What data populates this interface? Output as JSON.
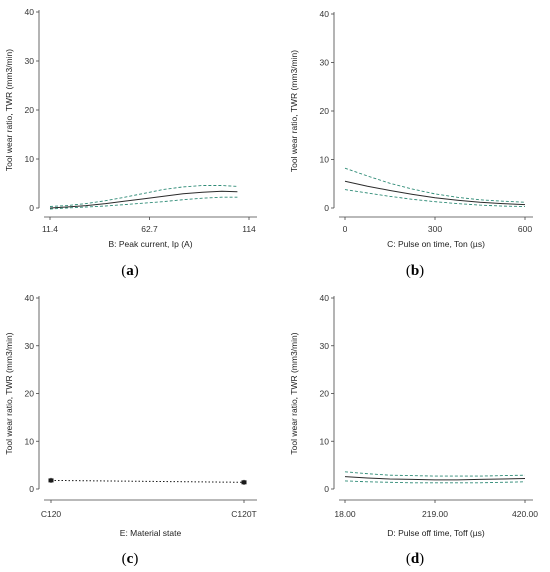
{
  "colors": {
    "mean_line": "#2b2b2b",
    "ci_line": "#2e8b76",
    "axis": "#444444",
    "point": "#1a1a1a"
  },
  "chart_data": [
    {
      "type": "line",
      "panel": "a",
      "caption": "(a)",
      "ylabel": "Tool wear ratio, TWR (mm3/min)",
      "xlabel": "B: Peak current, Ip (A)",
      "xlim": [
        11.4,
        114
      ],
      "ylim": [
        0,
        40
      ],
      "xticks": [
        11.4,
        62.7,
        114
      ],
      "xtick_labels": [
        "11.4",
        "62.7",
        "114"
      ],
      "yticks": [
        0,
        10,
        20,
        30,
        40
      ],
      "ytick_labels": [
        "0",
        "10",
        "20",
        "30",
        "40"
      ],
      "series": [
        {
          "role": "mean",
          "style": "solid",
          "x": [
            11.4,
            20,
            30,
            40,
            50,
            60,
            70,
            80,
            90,
            100,
            108
          ],
          "values": [
            0.0,
            0.2,
            0.5,
            0.9,
            1.4,
            1.9,
            2.4,
            2.9,
            3.2,
            3.4,
            3.3
          ]
        },
        {
          "role": "upper-ci",
          "style": "dashed",
          "x": [
            11.4,
            20,
            30,
            40,
            50,
            60,
            70,
            80,
            90,
            100,
            108
          ],
          "values": [
            0.3,
            0.5,
            0.9,
            1.5,
            2.2,
            3.0,
            3.8,
            4.3,
            4.6,
            4.6,
            4.4
          ]
        },
        {
          "role": "lower-ci",
          "style": "dashed",
          "x": [
            11.4,
            20,
            30,
            40,
            50,
            60,
            70,
            80,
            90,
            100,
            108
          ],
          "values": [
            -0.2,
            0.0,
            0.2,
            0.4,
            0.7,
            1.0,
            1.3,
            1.7,
            2.0,
            2.2,
            2.2
          ]
        }
      ]
    },
    {
      "type": "line",
      "panel": "b",
      "caption": "(b)",
      "ylabel": "Tool wear ratio, TWR (mm3/min)",
      "xlabel": "C: Pulse on time, Ton (µs)",
      "xlim": [
        0,
        600
      ],
      "ylim": [
        0,
        40
      ],
      "xticks": [
        0,
        300,
        600
      ],
      "xtick_labels": [
        "0",
        "300",
        "600"
      ],
      "yticks": [
        0,
        10,
        20,
        30,
        40
      ],
      "ytick_labels": [
        "0",
        "10",
        "20",
        "30",
        "40"
      ],
      "series": [
        {
          "role": "mean",
          "style": "solid",
          "x": [
            0,
            75,
            150,
            225,
            300,
            375,
            450,
            525,
            600
          ],
          "values": [
            5.5,
            4.5,
            3.6,
            2.8,
            2.1,
            1.6,
            1.2,
            0.9,
            0.7
          ]
        },
        {
          "role": "upper-ci",
          "style": "dashed",
          "x": [
            0,
            75,
            150,
            225,
            300,
            375,
            450,
            525,
            600
          ],
          "values": [
            8.2,
            6.6,
            5.1,
            3.9,
            2.9,
            2.2,
            1.7,
            1.4,
            1.2
          ]
        },
        {
          "role": "lower-ci",
          "style": "dashed",
          "x": [
            0,
            75,
            150,
            225,
            300,
            375,
            450,
            525,
            600
          ],
          "values": [
            3.8,
            3.1,
            2.4,
            1.8,
            1.3,
            0.9,
            0.6,
            0.4,
            0.3
          ]
        }
      ]
    },
    {
      "type": "scatter",
      "panel": "c",
      "caption": "(c)",
      "ylabel": "Tool wear ratio, TWR (mm3/min)",
      "xlabel": "E: Material state",
      "categories": [
        "C120",
        "C120T"
      ],
      "ylim": [
        0,
        40
      ],
      "yticks": [
        0,
        10,
        20,
        30,
        40
      ],
      "ytick_labels": [
        "0",
        "10",
        "20",
        "30",
        "40"
      ],
      "series": [
        {
          "role": "mean",
          "style": "dotted",
          "values": [
            1.8,
            1.4
          ]
        }
      ]
    },
    {
      "type": "line",
      "panel": "d",
      "caption": "(d)",
      "ylabel": "Tool wear ratio, TWR (mm3/min)",
      "xlabel": "D: Pulse off time, Toff (µs)",
      "xlim": [
        18,
        420
      ],
      "ylim": [
        0,
        40
      ],
      "xticks": [
        18,
        219,
        420
      ],
      "xtick_labels": [
        "18.00",
        "219.00",
        "420.00"
      ],
      "yticks": [
        0,
        10,
        20,
        30,
        40
      ],
      "ytick_labels": [
        "0",
        "10",
        "20",
        "30",
        "40"
      ],
      "series": [
        {
          "role": "mean",
          "style": "solid",
          "x": [
            18,
            68,
            118,
            168,
            219,
            269,
            319,
            369,
            420
          ],
          "values": [
            2.6,
            2.3,
            2.1,
            2.0,
            1.9,
            1.9,
            2.0,
            2.1,
            2.2
          ]
        },
        {
          "role": "upper-ci",
          "style": "dashed",
          "x": [
            18,
            68,
            118,
            168,
            219,
            269,
            319,
            369,
            420
          ],
          "values": [
            3.6,
            3.2,
            2.9,
            2.8,
            2.7,
            2.7,
            2.7,
            2.8,
            2.9
          ]
        },
        {
          "role": "lower-ci",
          "style": "dashed",
          "x": [
            18,
            68,
            118,
            168,
            219,
            269,
            319,
            369,
            420
          ],
          "values": [
            1.7,
            1.5,
            1.4,
            1.3,
            1.3,
            1.3,
            1.3,
            1.4,
            1.5
          ]
        }
      ]
    }
  ]
}
